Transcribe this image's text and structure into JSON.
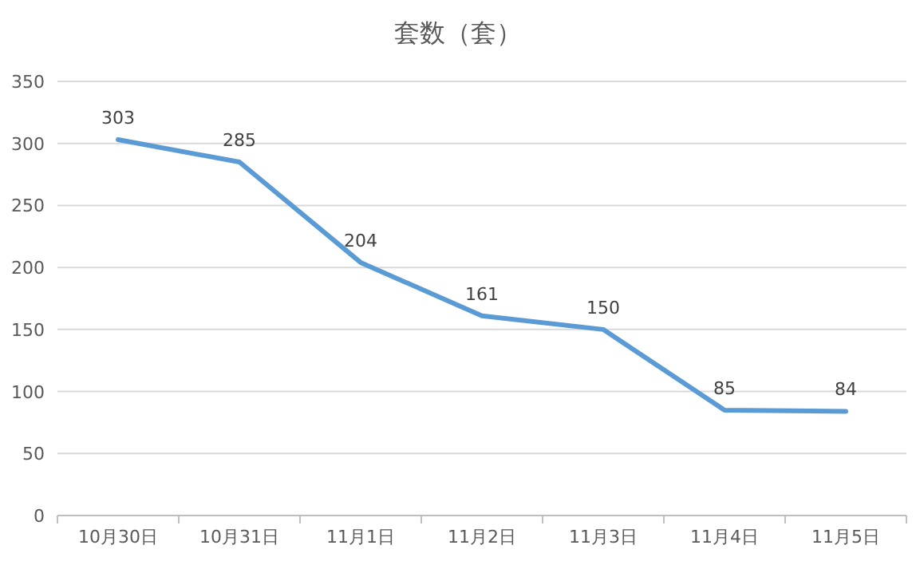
{
  "chart_data": {
    "type": "line",
    "title": "套数（套）",
    "categories": [
      "10月30日",
      "10月31日",
      "11月1日",
      "11月2日",
      "11月3日",
      "11月4日",
      "11月5日"
    ],
    "values": [
      303,
      285,
      204,
      161,
      150,
      85,
      84
    ],
    "color": "#5b9bd5",
    "ylim": [
      0,
      350
    ],
    "yticks": [
      0,
      50,
      100,
      150,
      200,
      250,
      300,
      350
    ],
    "grid": "y",
    "data_labels": true,
    "legend": false,
    "marker": "none",
    "line_style": "solid"
  }
}
